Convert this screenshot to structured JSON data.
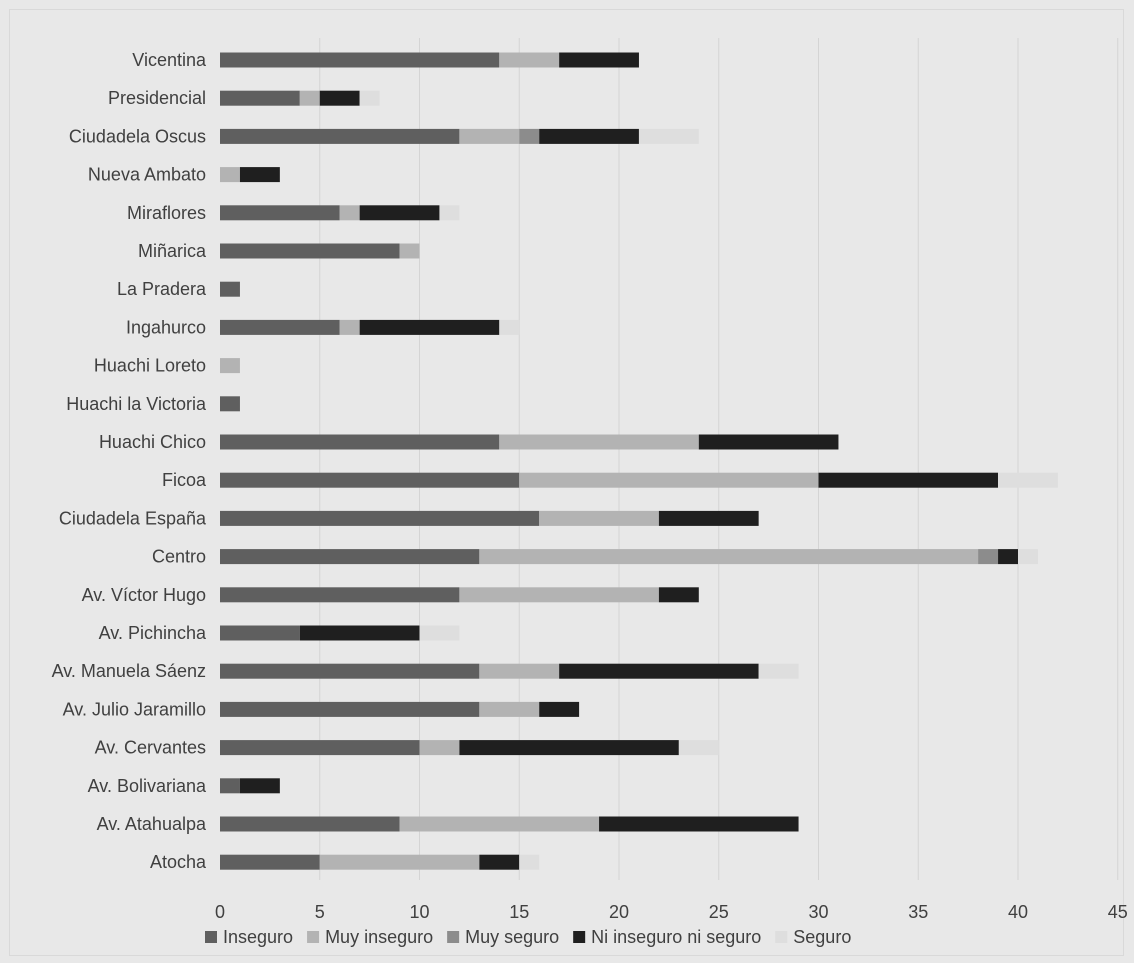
{
  "chart_data": {
    "type": "bar",
    "orientation": "horizontal",
    "stacked": true,
    "categories": [
      "Vicentina",
      "Presidencial",
      "Ciudadela Oscus",
      "Nueva Ambato",
      "Miraflores",
      "Miñarica",
      "La Pradera",
      "Ingahurco",
      "Huachi Loreto",
      "Huachi la Victoria",
      "Huachi Chico",
      "Ficoa",
      "Ciudadela España",
      "Centro",
      "Av. Víctor Hugo",
      "Av. Pichincha",
      "Av. Manuela Sáenz",
      "Av. Julio Jaramillo",
      "Av. Cervantes",
      "Av. Bolivariana",
      "Av. Atahualpa",
      "Atocha"
    ],
    "series": [
      {
        "name": "Inseguro",
        "color": "#5f5f5f",
        "values": [
          14,
          4,
          12,
          0,
          6,
          9,
          1,
          6,
          0,
          1,
          14,
          15,
          16,
          13,
          12,
          4,
          13,
          13,
          10,
          1,
          9,
          5
        ]
      },
      {
        "name": "Muy inseguro",
        "color": "#b3b3b3",
        "values": [
          3,
          1,
          3,
          1,
          1,
          1,
          0,
          1,
          1,
          0,
          10,
          15,
          6,
          25,
          10,
          0,
          4,
          3,
          2,
          0,
          10,
          8
        ]
      },
      {
        "name": "Muy seguro",
        "color": "#8c8c8c",
        "values": [
          0,
          0,
          1,
          0,
          0,
          0,
          0,
          0,
          0,
          0,
          0,
          0,
          0,
          1,
          0,
          0,
          0,
          0,
          0,
          0,
          0,
          0
        ]
      },
      {
        "name": "Ni inseguro ni seguro",
        "color": "#1f1f1f",
        "values": [
          4,
          2,
          5,
          2,
          4,
          0,
          0,
          7,
          0,
          0,
          7,
          9,
          5,
          1,
          2,
          6,
          10,
          2,
          11,
          2,
          10,
          2
        ]
      },
      {
        "name": "Seguro",
        "color": "#dedede",
        "values": [
          0,
          1,
          3,
          0,
          1,
          0,
          0,
          1,
          0,
          0,
          0,
          3,
          0,
          1,
          0,
          2,
          2,
          0,
          2,
          0,
          0,
          1
        ]
      }
    ],
    "xlim": [
      0,
      45
    ],
    "xticks": [
      "0",
      "5",
      "10",
      "15",
      "20",
      "25",
      "30",
      "35",
      "40",
      "45"
    ],
    "grid": "vertical",
    "legend": "bottom"
  }
}
